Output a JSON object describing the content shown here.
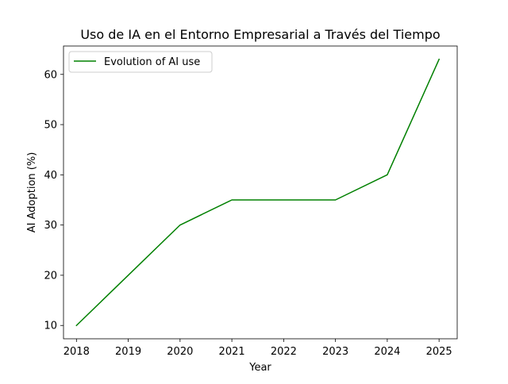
{
  "chart_data": {
    "type": "line",
    "title": "Uso de IA en el Entorno Empresarial a Través del Tiempo",
    "xlabel": "Year",
    "ylabel": "AI Adoption (%)",
    "x": [
      2018,
      2019,
      2020,
      2021,
      2022,
      2023,
      2024,
      2025
    ],
    "series": [
      {
        "name": "Evolution of AI use",
        "values": [
          10,
          20,
          30,
          35,
          35,
          35,
          40,
          63
        ],
        "color": "#008000"
      }
    ],
    "xticks": [
      "2018",
      "2019",
      "2020",
      "2021",
      "2022",
      "2023",
      "2024",
      "2025"
    ],
    "yticks": [
      10,
      20,
      30,
      40,
      50,
      60
    ],
    "xlim": [
      2017.75,
      2025.35
    ],
    "ylim": [
      7.35,
      65.65
    ],
    "grid": false,
    "legend_position": "upper-left"
  }
}
